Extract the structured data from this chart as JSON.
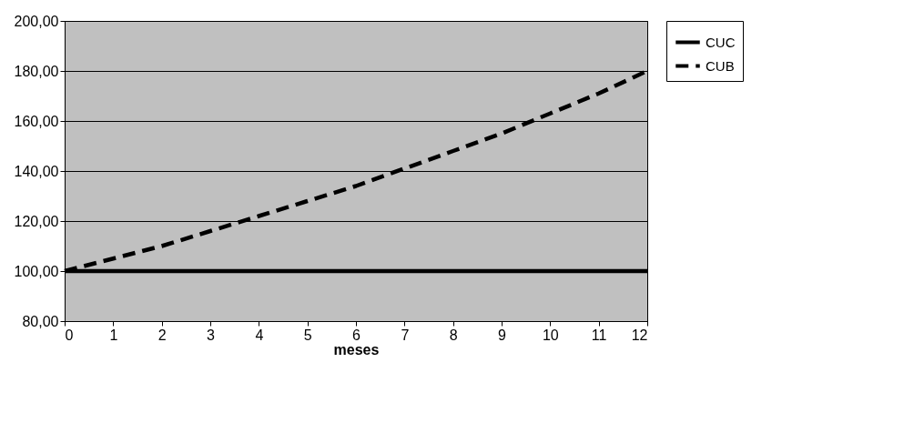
{
  "chart_data": {
    "type": "line",
    "xlabel": "meses",
    "x": [
      0,
      1,
      2,
      3,
      4,
      5,
      6,
      7,
      8,
      9,
      10,
      11,
      12
    ],
    "series": [
      {
        "name": "CUC",
        "color": "#000000",
        "line_style": "solid",
        "values": [
          100,
          100,
          100,
          100,
          100,
          100,
          100,
          100,
          100,
          100,
          100,
          100,
          100
        ]
      },
      {
        "name": "CUB",
        "color": "#000000",
        "line_style": "dashed",
        "values": [
          100,
          105,
          110,
          116,
          122,
          128,
          134,
          141,
          148,
          155,
          163,
          171,
          180
        ]
      }
    ],
    "xlim": [
      0,
      12
    ],
    "xticks": [
      0,
      1,
      2,
      3,
      4,
      5,
      6,
      7,
      8,
      9,
      10,
      11,
      12
    ],
    "ylim": [
      80,
      200
    ],
    "yticks": [
      {
        "value": 80,
        "label": "80,00"
      },
      {
        "value": 100,
        "label": "100,00"
      },
      {
        "value": 120,
        "label": "120,00"
      },
      {
        "value": 140,
        "label": "140,00"
      },
      {
        "value": 160,
        "label": "160,00"
      },
      {
        "value": 180,
        "label": "180,00"
      },
      {
        "value": 200,
        "label": "200,00"
      }
    ],
    "grid": "y",
    "legend": "right",
    "marker": "none"
  }
}
